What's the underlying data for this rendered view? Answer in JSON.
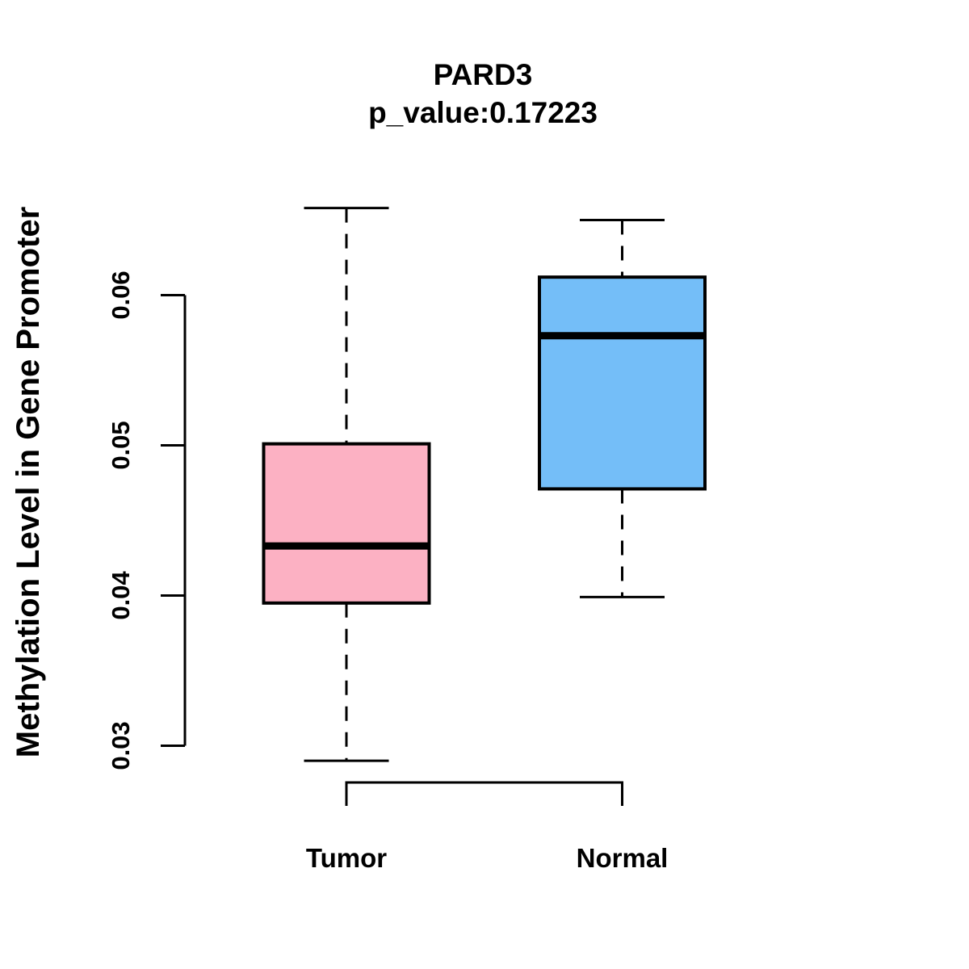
{
  "chart_data": {
    "type": "boxplot",
    "title": "PARD3",
    "subtitle": "p_value:0.17223",
    "xlabel": "",
    "ylabel": "Methylation Level in Gene Promoter",
    "y_ticks": [
      0.03,
      0.04,
      0.05,
      0.06
    ],
    "y_tick_labels": [
      "0.03",
      "0.04",
      "0.05",
      "0.06"
    ],
    "ylim": [
      0.029,
      0.066
    ],
    "grid": false,
    "legend": false,
    "groups": [
      {
        "label": "Tumor",
        "color": "#FCB1C3",
        "whisker_low": 0.029,
        "q1": 0.0395,
        "median": 0.0433,
        "q3": 0.0501,
        "whisker_high": 0.0658
      },
      {
        "label": "Normal",
        "color": "#74BEF8",
        "whisker_low": 0.0399,
        "q1": 0.0471,
        "median": 0.0573,
        "q3": 0.0612,
        "whisker_high": 0.065
      }
    ],
    "colors": {
      "stroke": "#000000",
      "background": "#ffffff"
    }
  }
}
